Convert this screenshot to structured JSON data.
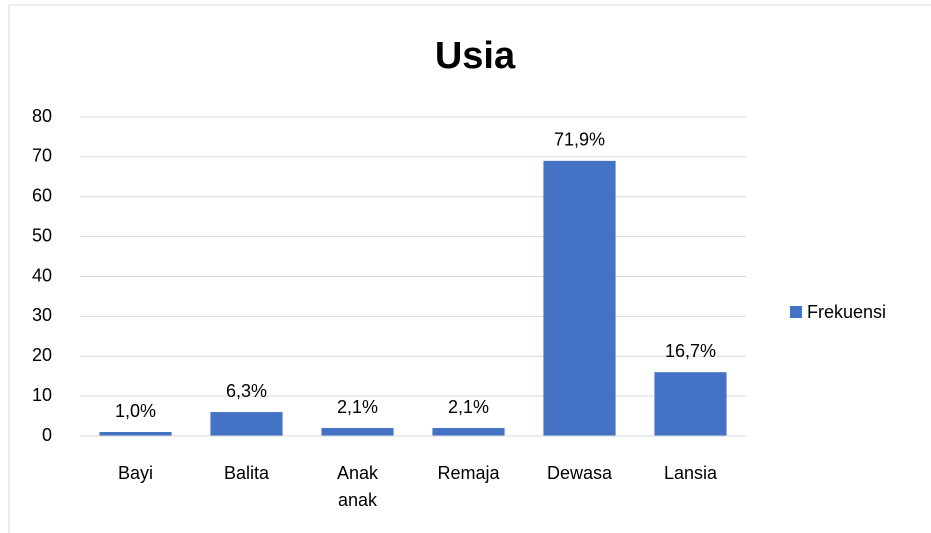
{
  "chart_data": {
    "type": "bar",
    "title": "Usia",
    "categories": [
      "Bayi",
      "Balita",
      "Anak anak",
      "Remaja",
      "Dewasa",
      "Lansia"
    ],
    "series": [
      {
        "name": "Frekuensi",
        "color": "#4472c4",
        "values": [
          1,
          6,
          2,
          2,
          69,
          16
        ]
      }
    ],
    "data_labels": [
      "1,0%",
      "6,3%",
      "2,1%",
      "2,1%",
      "71,9%",
      "16,7%"
    ],
    "ylim": [
      0,
      80
    ],
    "yticks": [
      0,
      10,
      20,
      30,
      40,
      50,
      60,
      70,
      80
    ],
    "grid": true,
    "legend": "right"
  }
}
